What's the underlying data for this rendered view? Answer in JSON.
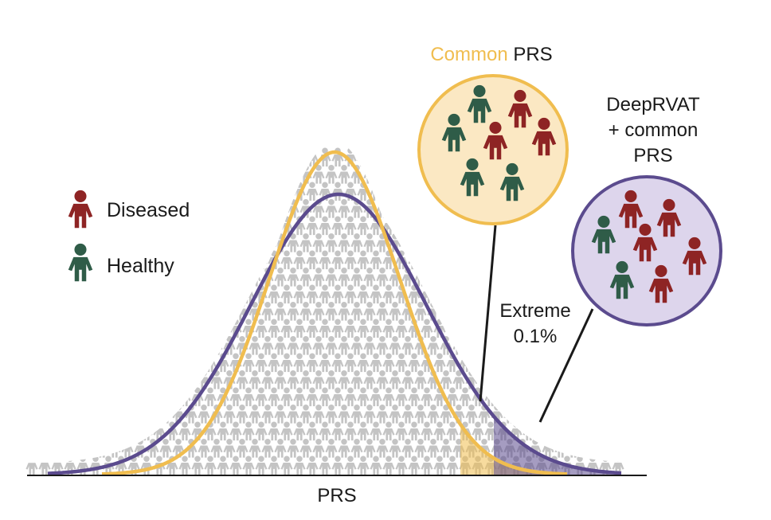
{
  "colors": {
    "diseased": "#8e2424",
    "healthy": "#2f5c48",
    "crowd": "#c4c4c4",
    "common": "#f0bd4f",
    "deeprvat": "#5b4b8e",
    "common_fill": "#fbe8c3",
    "deeprvat_fill": "#ddd5ec"
  },
  "legend": {
    "diseased_label": "Diseased",
    "healthy_label": "Healthy"
  },
  "axis": {
    "xlabel": "PRS"
  },
  "annotation": {
    "line1": "Extreme",
    "line2": "0.1%"
  },
  "common_circle": {
    "title_colored": "Common",
    "title_rest": " PRS",
    "people": [
      {
        "status": "healthy"
      },
      {
        "status": "diseased"
      },
      {
        "status": "healthy"
      },
      {
        "status": "diseased"
      },
      {
        "status": "diseased"
      },
      {
        "status": "healthy"
      },
      {
        "status": "healthy"
      }
    ]
  },
  "deeprvat_circle": {
    "title_colored": "DeepRVAT",
    "title_line2": "+ common",
    "title_line3": "PRS",
    "people": [
      {
        "status": "diseased"
      },
      {
        "status": "diseased"
      },
      {
        "status": "healthy"
      },
      {
        "status": "diseased"
      },
      {
        "status": "diseased"
      },
      {
        "status": "healthy"
      },
      {
        "status": "diseased"
      }
    ]
  }
}
